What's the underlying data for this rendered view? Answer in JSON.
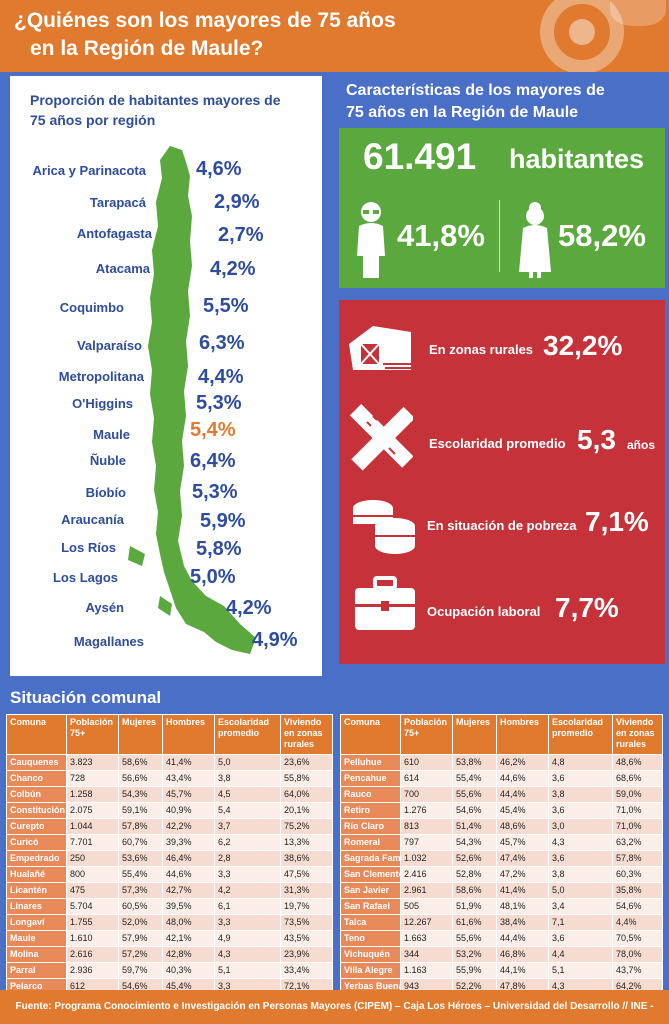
{
  "header": {
    "title_line1": "¿Quiénes son los mayores de 75 años",
    "title_line2": "en la Región de Maule?"
  },
  "left": {
    "title_line1": "Proporción de habitantes mayores de",
    "title_line2": "75 años por región",
    "regions": [
      {
        "name": "Arica y Parinacota",
        "value": "4,6%"
      },
      {
        "name": "Tarapacá",
        "value": "2,9%"
      },
      {
        "name": "Antofagasta",
        "value": "2,7%"
      },
      {
        "name": "Atacama",
        "value": "4,2%"
      },
      {
        "name": "Coquimbo",
        "value": "5,5%"
      },
      {
        "name": "Valparaíso",
        "value": "6,3%"
      },
      {
        "name": "Metropolitana",
        "value": "4,4%"
      },
      {
        "name": "O'Higgins",
        "value": "5,3%"
      },
      {
        "name": "Maule",
        "value": "5,4%"
      },
      {
        "name": "Ñuble",
        "value": "6,4%"
      },
      {
        "name": "Bíobío",
        "value": "5,3%"
      },
      {
        "name": "Araucanía",
        "value": "5,9%"
      },
      {
        "name": "Los Ríos",
        "value": "5,8%"
      },
      {
        "name": "Los Lagos",
        "value": "5,0%"
      },
      {
        "name": "Aysén",
        "value": "4,2%"
      },
      {
        "name": "Magallanes",
        "value": "4,9%"
      }
    ],
    "highlight_color": "#e07a2e",
    "map_color": "#5aa83e"
  },
  "right": {
    "title_line1": "Características de los mayores de",
    "title_line2": "75 años en la Región de Maule",
    "total": "61.491",
    "total_word": "habitantes",
    "men_pct": "41,8%",
    "women_pct": "58,2%",
    "stats": [
      {
        "icon": "barn-icon",
        "label": "En zonas rurales",
        "value": "32,2%",
        "unit": ""
      },
      {
        "icon": "pencil-ruler-icon",
        "label": "Escolaridad promedio",
        "value": "5,3",
        "unit": "años"
      },
      {
        "icon": "coins-icon",
        "label": "En situación de pobreza",
        "value": "7,1%",
        "unit": ""
      },
      {
        "icon": "briefcase-icon",
        "label": "Ocupación laboral",
        "value": "7,7%",
        "unit": ""
      }
    ]
  },
  "comunal": {
    "title": "Situación comunal",
    "headers": [
      "Comuna",
      "Población 75+",
      "Mujeres",
      "Hombres",
      "Escolaridad promedio",
      "Viviendo en zonas rurales"
    ],
    "left_rows": [
      [
        "Cauquenes",
        "3.823",
        "58,6%",
        "41,4%",
        "5,0",
        "23,6%"
      ],
      [
        "Chanco",
        "728",
        "56,6%",
        "43,4%",
        "3,8",
        "55,8%"
      ],
      [
        "Colbún",
        "1.258",
        "54,3%",
        "45,7%",
        "4,5",
        "64,0%"
      ],
      [
        "Constitución",
        "2.075",
        "59,1%",
        "40,9%",
        "5,4",
        "20,1%"
      ],
      [
        "Curepto",
        "1.044",
        "57,8%",
        "42,2%",
        "3,7",
        "75,2%"
      ],
      [
        "Curicó",
        "7.701",
        "60,7%",
        "39,3%",
        "6,2",
        "13,3%"
      ],
      [
        "Empedrado",
        "250",
        "53,6%",
        "46,4%",
        "2,8",
        "38,6%"
      ],
      [
        "Hualañé",
        "800",
        "55,4%",
        "44,6%",
        "3,3",
        "47,5%"
      ],
      [
        "Licantén",
        "475",
        "57,3%",
        "42,7%",
        "4,2",
        "31,3%"
      ],
      [
        "Linares",
        "5.704",
        "60,5%",
        "39,5%",
        "6,1",
        "19,7%"
      ],
      [
        "Longaví",
        "1.755",
        "52,0%",
        "48,0%",
        "3,3",
        "73,5%"
      ],
      [
        "Maule",
        "1.610",
        "57,9%",
        "42,1%",
        "4,9",
        "43,5%"
      ],
      [
        "Molina",
        "2.616",
        "57,2%",
        "42,8%",
        "4,3",
        "23,9%"
      ],
      [
        "Parral",
        "2.936",
        "59,7%",
        "40,3%",
        "5,1",
        "33,4%"
      ],
      [
        "Pelarco",
        "612",
        "54,6%",
        "45,4%",
        "3,3",
        "72,1%"
      ]
    ],
    "right_rows": [
      [
        "Pelluhue",
        "610",
        "53,8%",
        "46,2%",
        "4,8",
        "48,6%"
      ],
      [
        "Pencahue",
        "614",
        "55,4%",
        "44,6%",
        "3,6",
        "68,6%"
      ],
      [
        "Rauco",
        "700",
        "55,6%",
        "44,4%",
        "3,8",
        "59,0%"
      ],
      [
        "Retiro",
        "1.276",
        "54,6%",
        "45,4%",
        "3,6",
        "71,0%"
      ],
      [
        "Río Claro",
        "813",
        "51,4%",
        "48,6%",
        "3,0",
        "71,0%"
      ],
      [
        "Romeral",
        "797",
        "54,3%",
        "45,7%",
        "4,3",
        "63,2%"
      ],
      [
        "Sagrada Familia",
        "1.032",
        "52,6%",
        "47,4%",
        "3,6",
        "57,8%"
      ],
      [
        "San Clemente",
        "2.416",
        "52,8%",
        "47,2%",
        "3,8",
        "60,3%"
      ],
      [
        "San Javier",
        "2.961",
        "58,6%",
        "41,4%",
        "5,0",
        "35,8%"
      ],
      [
        "San Rafael",
        "505",
        "51,9%",
        "48,1%",
        "3,4",
        "54,6%"
      ],
      [
        "Talca",
        "12.267",
        "61,6%",
        "38,4%",
        "7,1",
        "4,4%"
      ],
      [
        "Teno",
        "1.663",
        "55,6%",
        "44,4%",
        "3,6",
        "70,5%"
      ],
      [
        "Vichuquén",
        "344",
        "53,2%",
        "46,8%",
        "4,4",
        "78,0%"
      ],
      [
        "Villa Alegre",
        "1.163",
        "55,9%",
        "44,1%",
        "5,1",
        "43,7%"
      ],
      [
        "Yerbas Buenas",
        "943",
        "52,2%",
        "47,8%",
        "4,3",
        "64,2%"
      ]
    ]
  },
  "footer": {
    "text": "Fuente: Programa Conocimiento e Investigación en Personas Mayores (CIPEM) – Caja Los Héroes – Universidad del Desarrollo // INE - CENSO"
  }
}
